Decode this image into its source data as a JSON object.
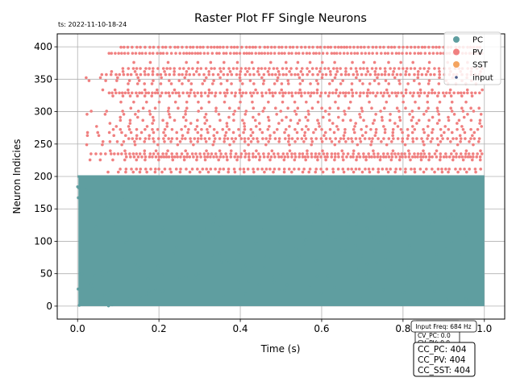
{
  "timestamp": "ts: 2022-11-10-18-24",
  "info_box": {
    "input_freq": "Input Freq: 684 Hz",
    "cv_lines": [
      "CV_PC: 0.0",
      "CV_PV: 0.0"
    ]
  },
  "cc_box": [
    "CC_PC: 404",
    "CC_PV: 404",
    "CC_SST: 404"
  ],
  "colors": {
    "PC": "#5f9ea0",
    "PV": "#f08080",
    "SST": "#f4a460",
    "input": "#4a5a8a"
  },
  "chart_data": {
    "type": "scatter",
    "title": "Raster Plot FF Single Neurons",
    "xlabel": "Time (s)",
    "ylabel": "Neuron Indicies",
    "xlim": [
      -0.05,
      1.05
    ],
    "ylim": [
      -20,
      420
    ],
    "xticks": [
      0.0,
      0.2,
      0.4,
      0.6,
      0.8,
      1.0
    ],
    "xtick_labels": [
      "0.0",
      "0.2",
      "0.4",
      "0.6",
      "0.8",
      "1.0"
    ],
    "yticks": [
      0,
      50,
      100,
      150,
      200,
      250,
      300,
      350,
      400
    ],
    "ytick_labels": [
      "0",
      "50",
      "100",
      "150",
      "200",
      "250",
      "300",
      "350",
      "400"
    ],
    "grid": true,
    "legend_position": "top-right",
    "series": [
      {
        "name": "PC",
        "neuron_range": [
          0,
          200
        ],
        "time_range": [
          0.0,
          1.0
        ],
        "marker": "dot"
      },
      {
        "name": "PV",
        "neuron_range": [
          200,
          400
        ],
        "time_range": [
          0.0,
          1.0
        ],
        "marker": "dot"
      },
      {
        "name": "SST",
        "neuron_range": [],
        "time_range": [],
        "marker": "dot"
      },
      {
        "name": "input",
        "neuron_range": [],
        "time_range": [],
        "marker": "small-dot"
      }
    ]
  }
}
